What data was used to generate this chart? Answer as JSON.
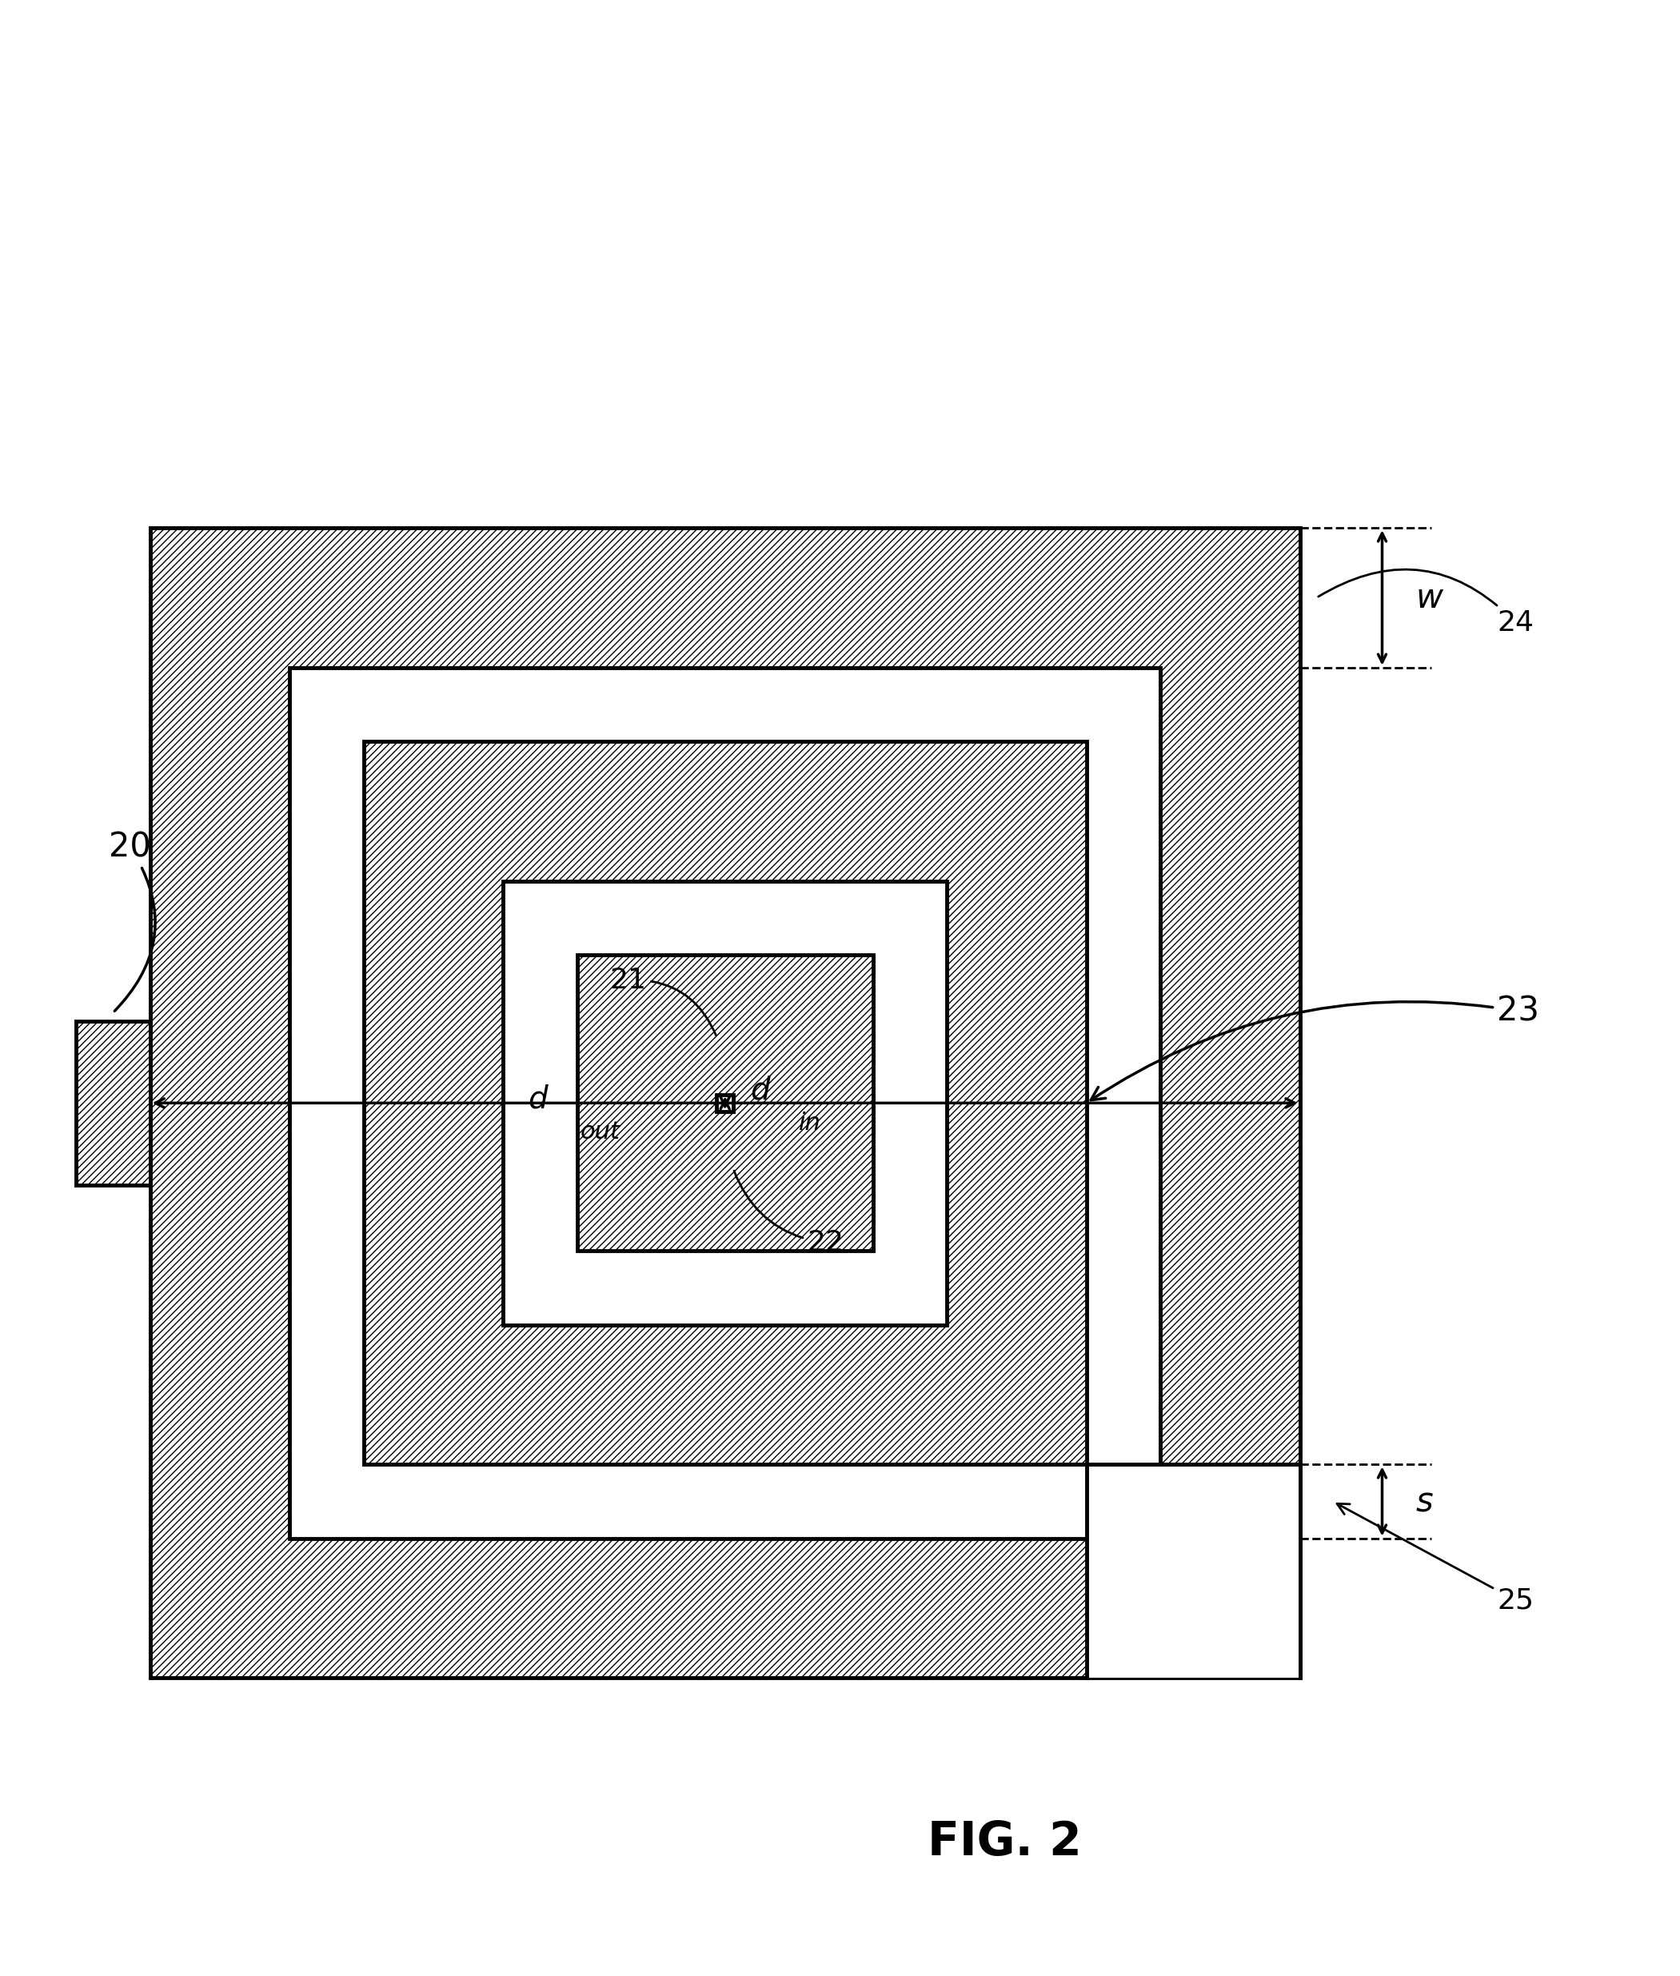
{
  "bg_color": "#ffffff",
  "hatch_pattern": "////",
  "line_color": "#000000",
  "line_width": 3.5,
  "fig_width": 21.01,
  "fig_height": 24.71,
  "title": "FIG. 2",
  "title_fontsize": 42,
  "title_fontweight": "bold",
  "label_20": "20",
  "label_21": "21",
  "label_22": "22",
  "label_23": "23",
  "label_24": "24",
  "label_25": "25"
}
